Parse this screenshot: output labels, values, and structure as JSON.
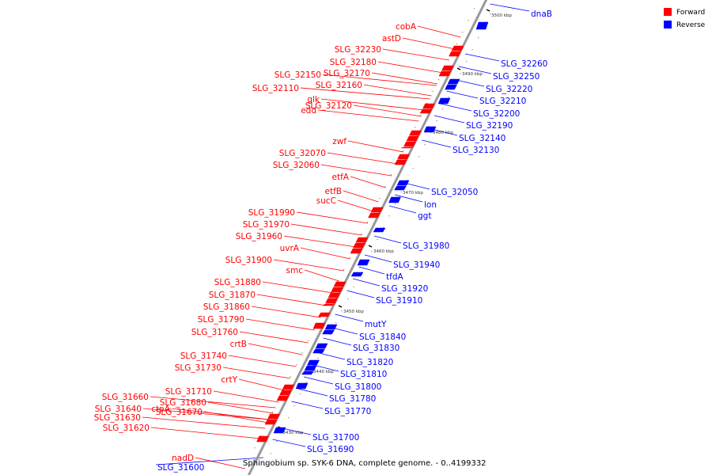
{
  "caption": "Sphingobium sp. SYK-6 DNA, complete genome. - 0..4199332",
  "legend": [
    {
      "label": "Forward",
      "color": "#ff0000"
    },
    {
      "label": "Reverse",
      "color": "#0000ff"
    }
  ],
  "colors": {
    "forward": "#ff0000",
    "reverse": "#0000ff",
    "axis": "#999999",
    "leader": "#bbbbbb"
  },
  "ticks": [
    "3500 kbp",
    "3490 kbp",
    "3480 kbp",
    "3470 kbp",
    "3460 kbp",
    "3450 kbp",
    "3440 kbp",
    "3430 kbp"
  ],
  "forward_genes": [
    "cobA",
    "astD",
    "SLG_32230",
    "SLG_32180",
    "SLG_32170",
    "SLG_32150",
    "SLG_32160",
    "SLG_32110",
    "glk",
    "SLG_32120",
    "edd",
    "zwf",
    "SLG_32070",
    "SLG_32060",
    "etfA",
    "etfB",
    "sucC",
    "SLG_31990",
    "SLG_31970",
    "SLG_31960",
    "uvrA",
    "SLG_31900",
    "smc",
    "SLG_31880",
    "SLG_31870",
    "SLG_31860",
    "SLG_31790",
    "SLG_31760",
    "crtB",
    "SLG_31740",
    "SLG_31730",
    "crtY",
    "SLG_31710",
    "SLG_31660",
    "SLG_31680",
    "SLG_31640",
    "ctpA",
    "SLG_31670",
    "SLG_31630",
    "SLG_31620",
    "nadD"
  ],
  "reverse_genes": [
    "dnaB",
    "SLG_32260",
    "SLG_32250",
    "SLG_32220",
    "SLG_32210",
    "SLG_32200",
    "SLG_32190",
    "SLG_32140",
    "SLG_32130",
    "SLG_32050",
    "lon",
    "ggt",
    "SLG_31980",
    "SLG_31940",
    "tfdA",
    "SLG_31920",
    "SLG_31910",
    "mutY",
    "SLG_31840",
    "SLG_31830",
    "SLG_31820",
    "SLG_31810",
    "SLG_31800",
    "SLG_31780",
    "SLG_31770",
    "SLG_31700",
    "SLG_31690",
    "SLG_31600"
  ]
}
